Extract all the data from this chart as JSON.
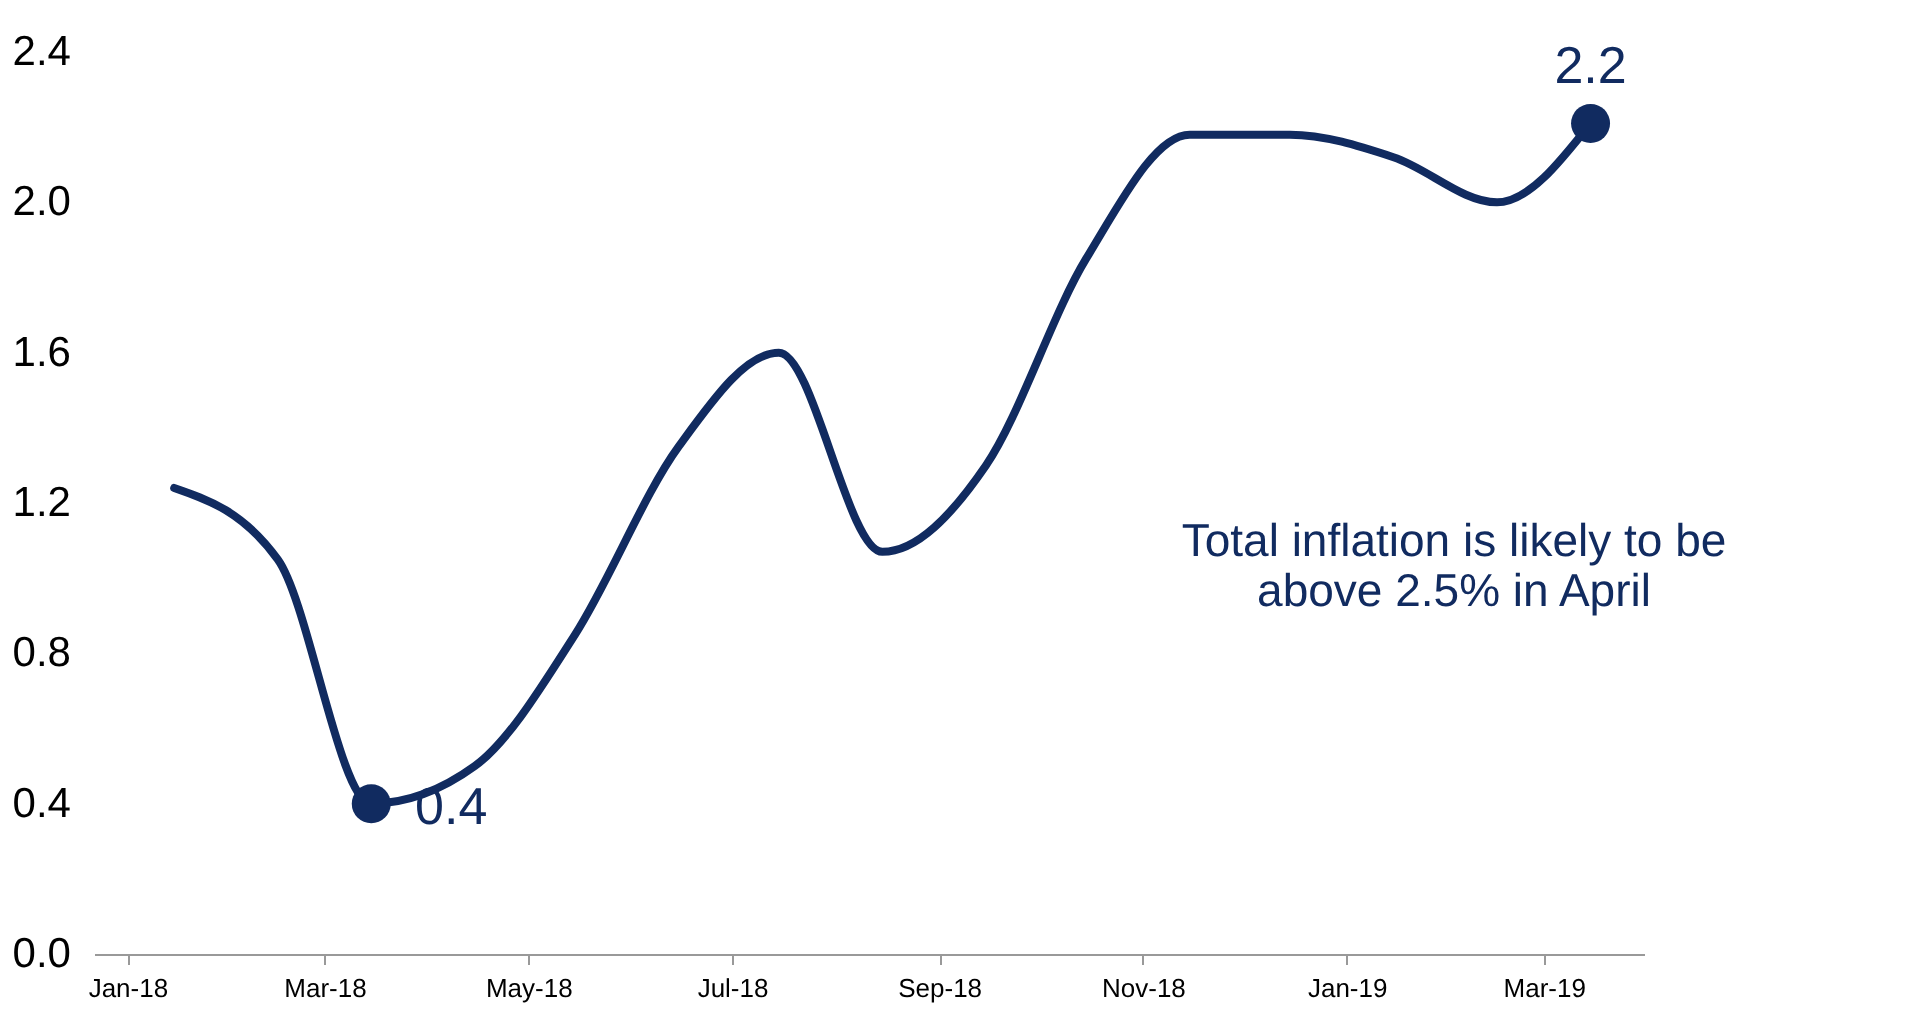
{
  "chart_data": {
    "type": "line",
    "x": [
      "2018-01-15",
      "2018-02-15",
      "2018-03-15",
      "2018-04-15",
      "2018-05-15",
      "2018-06-15",
      "2018-07-15",
      "2018-08-15",
      "2018-09-15",
      "2018-10-15",
      "2018-11-15",
      "2018-12-15",
      "2019-01-15",
      "2019-02-15",
      "2019-03-15"
    ],
    "series": [
      {
        "color": "#112b60",
        "values": [
          1.24,
          1.05,
          0.4,
          0.5,
          0.85,
          1.35,
          1.6,
          1.07,
          1.3,
          1.85,
          2.18,
          2.18,
          2.12,
          2.0,
          2.21
        ],
        "value_labels": [
          null,
          null,
          "0.4",
          null,
          null,
          null,
          null,
          null,
          null,
          null,
          null,
          null,
          null,
          null,
          "2.2"
        ]
      }
    ],
    "ylim": [
      0,
      2.4
    ],
    "yticks": [
      {
        "value": 0,
        "label": "0.0"
      },
      0.4,
      0.8,
      1.2,
      1.6,
      {
        "value": 2,
        "label": "2.0"
      },
      2.4
    ],
    "xlim": [
      "2017-12-22",
      "2019-03-31"
    ],
    "xticks": [
      {
        "value": "2018-01-01",
        "label": "Jan-18"
      },
      {
        "value": "2018-03-01",
        "label": "Mar-18"
      },
      {
        "value": "2018-05-01",
        "label": "May-18"
      },
      {
        "value": "2018-07-01",
        "label": "Jul-18"
      },
      {
        "value": "2018-09-01",
        "label": "Sep-18"
      },
      {
        "value": "2018-11-01",
        "label": "Nov-18"
      },
      {
        "value": "2019-01-01",
        "label": "Jan-19"
      },
      {
        "value": "2019-03-01",
        "label": "Mar-19"
      }
    ],
    "annotations": [
      "Total inflation is likely to be\nabove 2.5% in April"
    ],
    "grid": false,
    "line_style": "solid"
  }
}
